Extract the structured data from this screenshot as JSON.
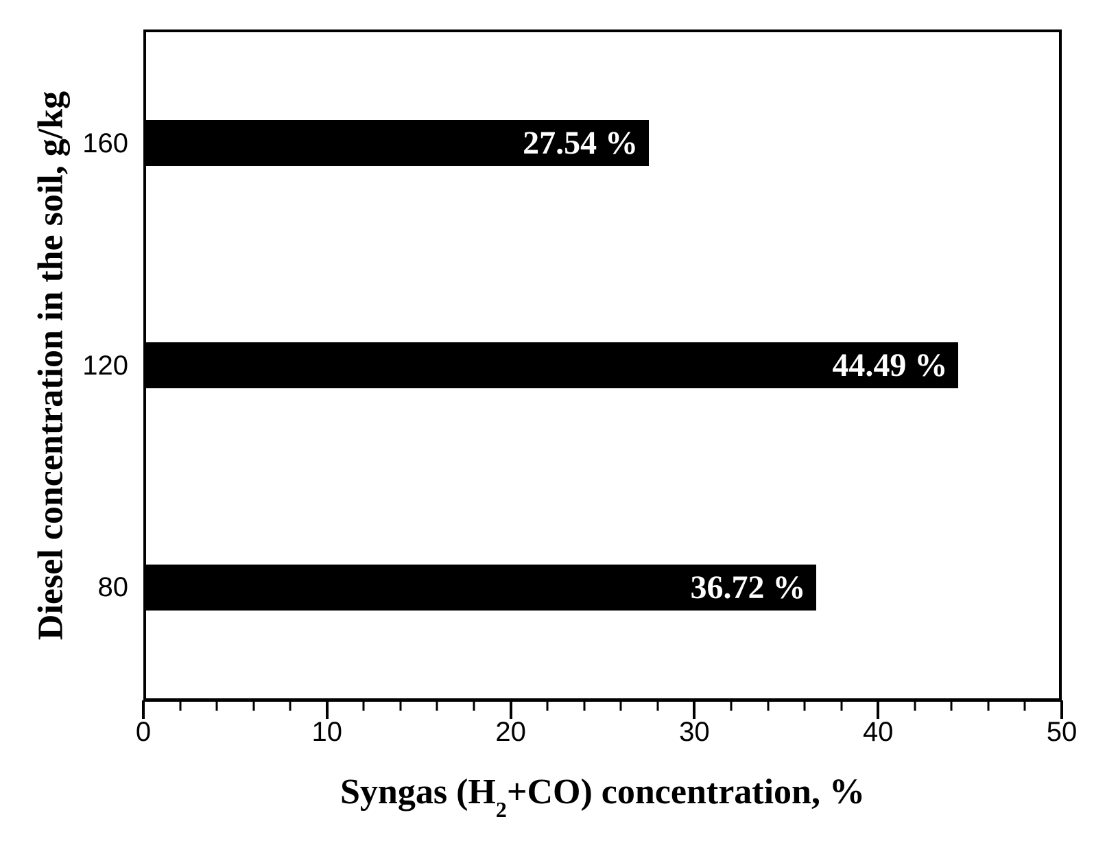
{
  "chart_data": {
    "type": "bar",
    "orientation": "horizontal",
    "categories": [
      "160",
      "120",
      "80"
    ],
    "values": [
      27.54,
      44.49,
      36.72
    ],
    "bar_labels": [
      "27.54 %",
      "44.49 %",
      "36.72 %"
    ],
    "ylabel": "Diesel concentration in the soil, g/kg",
    "xlabel_parts": {
      "pre": "Syngas (H",
      "sub": "2",
      "post": "+CO) concentration, %"
    },
    "xlim": [
      0,
      50
    ],
    "x_major_ticks": [
      0,
      10,
      20,
      30,
      40,
      50
    ],
    "x_minor_tick_step": 2,
    "grid": "off",
    "legend": "none",
    "bar_color": "#000000",
    "bar_label_color": "#ffffff",
    "axis_color": "#000000",
    "tick_label_color": "#000000",
    "background_color": "#ffffff"
  }
}
